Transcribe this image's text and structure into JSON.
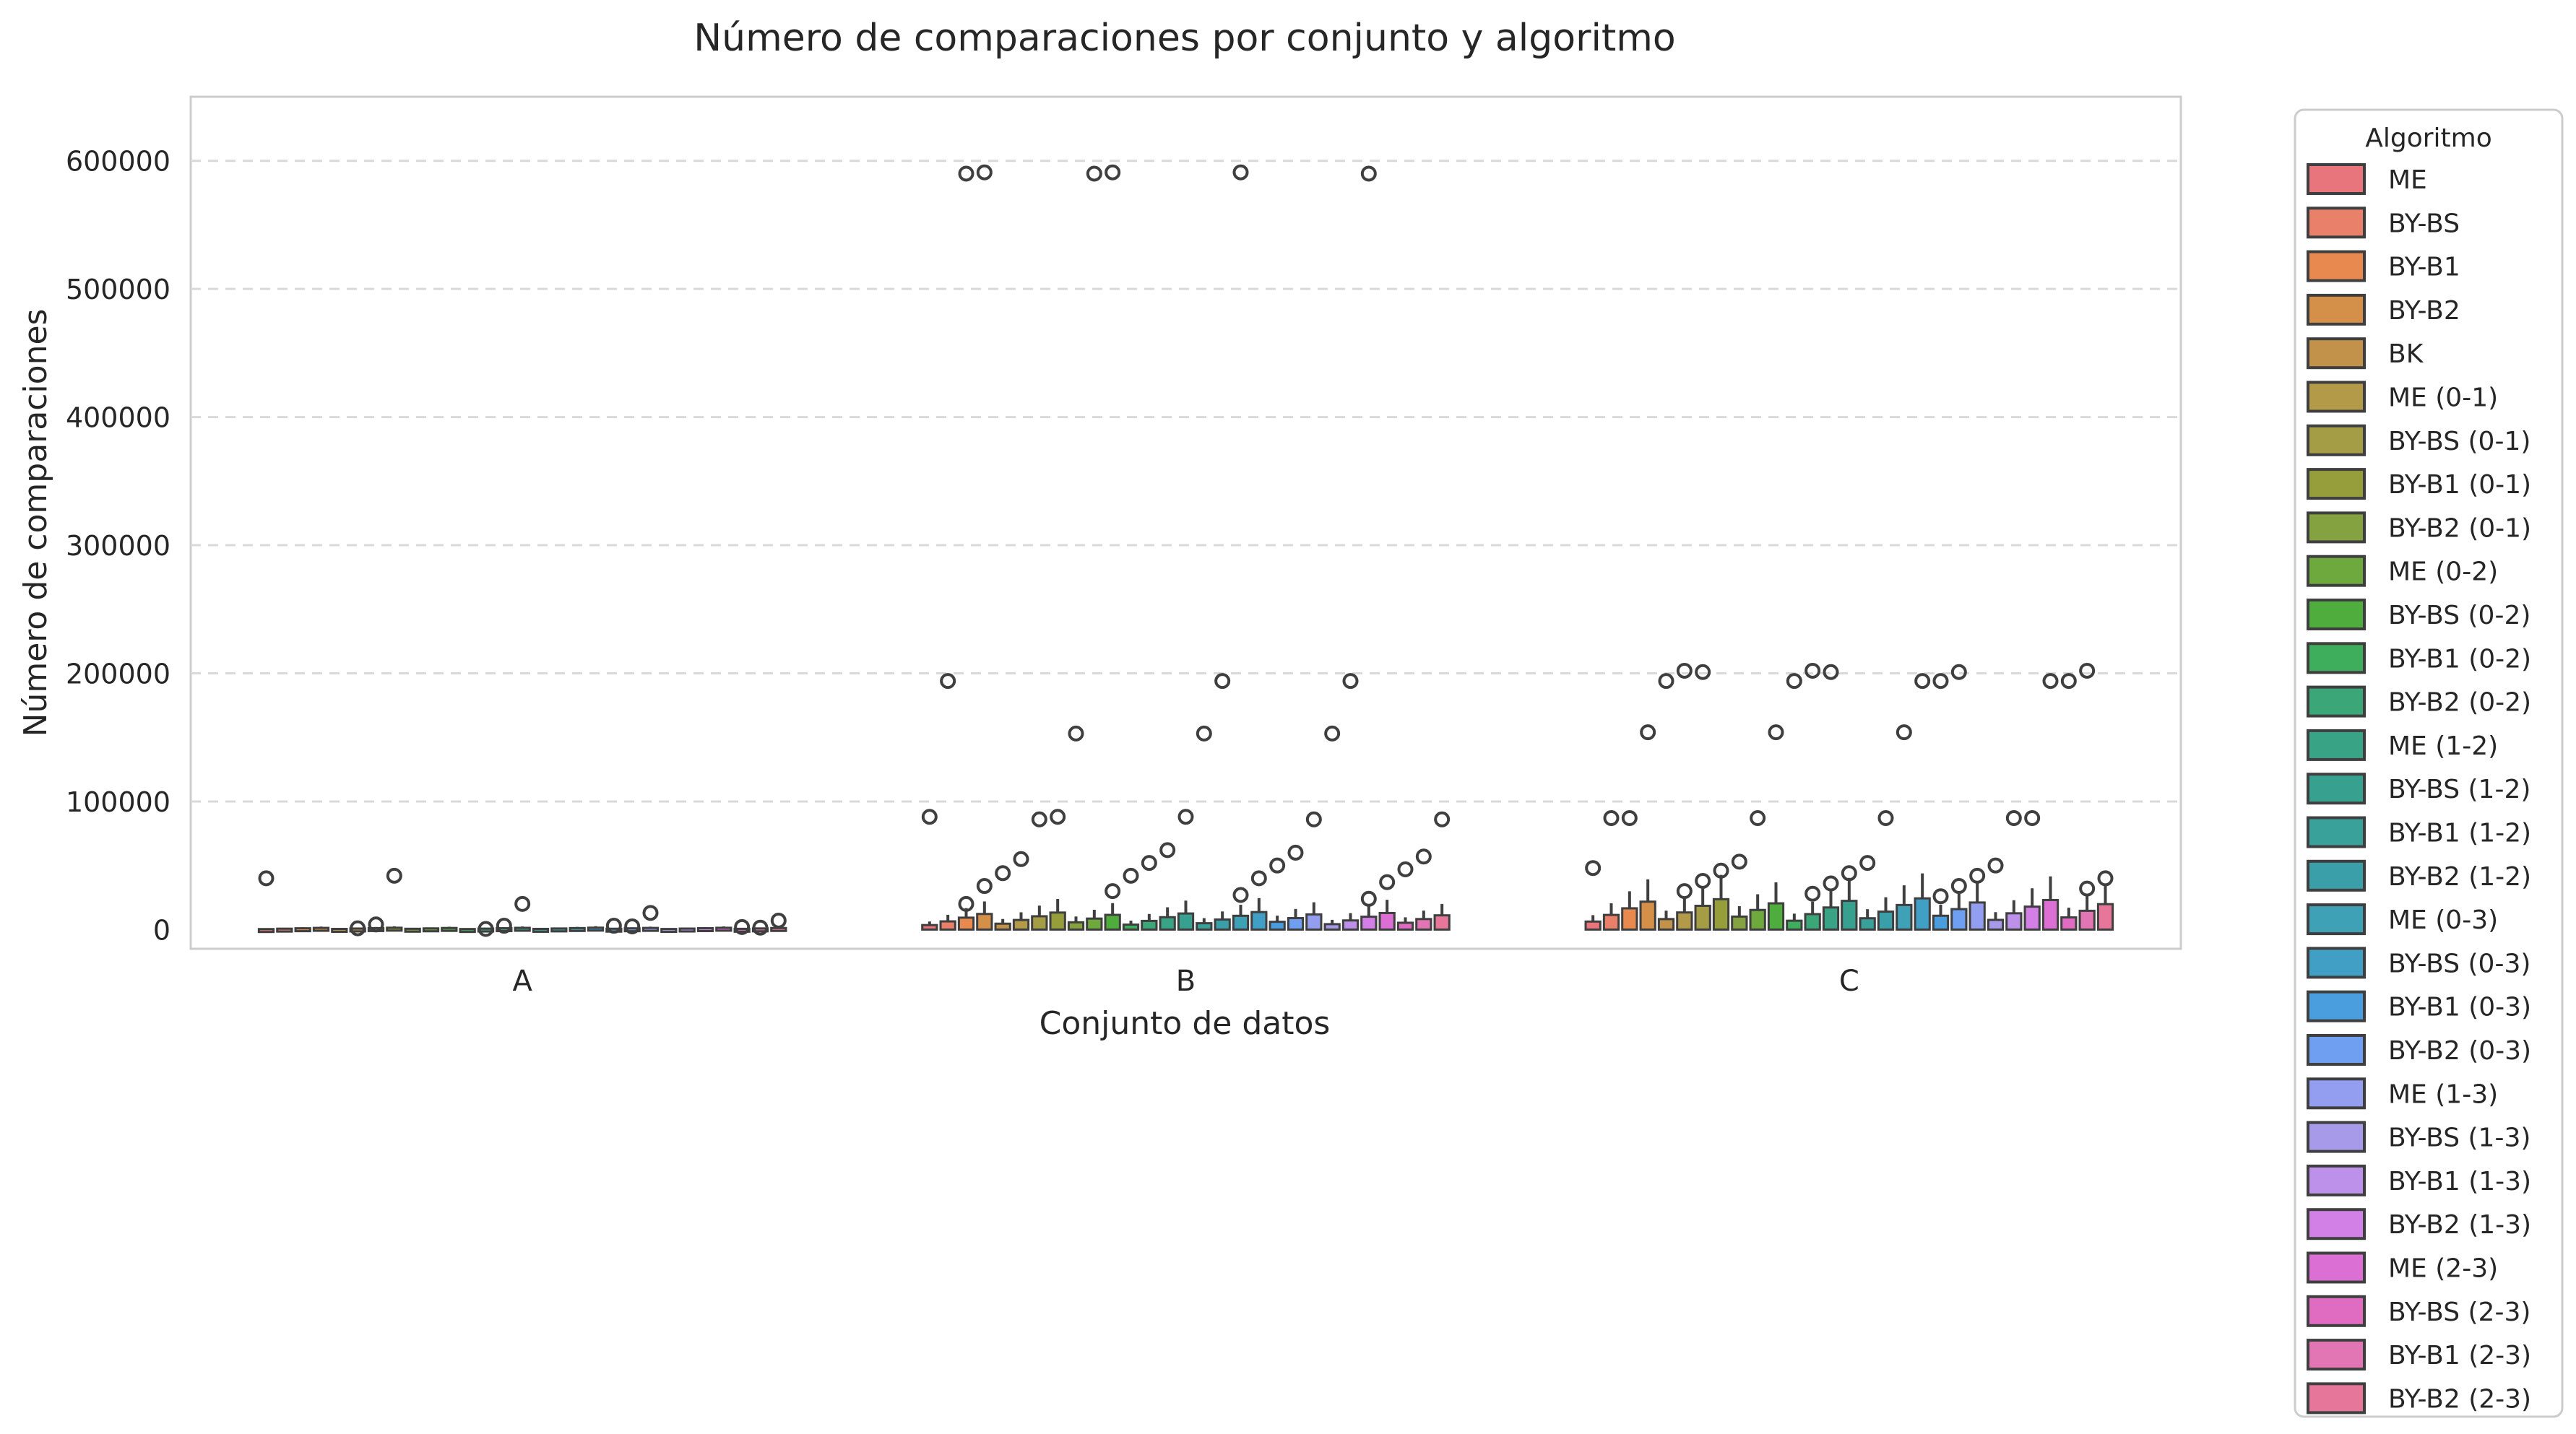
{
  "chart_data": {
    "type": "boxplot",
    "title": "Número de comparaciones por conjunto y algoritmo",
    "xlabel": "Conjunto de datos",
    "ylabel": "Número de comparaciones",
    "categories": [
      "A",
      "B",
      "C"
    ],
    "ylim": [
      -15000,
      650000
    ],
    "yticks": [
      0,
      100000,
      200000,
      300000,
      400000,
      500000,
      600000
    ],
    "grid": "horizontal-dashed",
    "legend": {
      "title": "Algoritmo",
      "placement": "outside-right",
      "entries": [
        "ME",
        "BY-BS",
        "BY-B1",
        "BY-B2",
        "BK",
        "ME (0-1)",
        "BY-BS (0-1)",
        "BY-B1 (0-1)",
        "BY-B2 (0-1)",
        "ME (0-2)",
        "BY-BS (0-2)",
        "BY-B1 (0-2)",
        "BY-B2 (0-2)",
        "ME (1-2)",
        "BY-BS (1-2)",
        "BY-B1 (1-2)",
        "BY-B2 (1-2)",
        "ME (0-3)",
        "BY-BS (0-3)",
        "BY-B1 (0-3)",
        "BY-B2 (0-3)",
        "ME (1-3)",
        "BY-BS (1-3)",
        "BY-B1 (1-3)",
        "BY-B2 (1-3)",
        "ME (2-3)",
        "BY-BS (2-3)",
        "BY-B1 (2-3)",
        "BY-B2 (2-3)"
      ],
      "colors": [
        "#e8747c",
        "#e9806a",
        "#e88a4f",
        "#d48f48",
        "#c2924a",
        "#b29a48",
        "#a59d45",
        "#959e3b",
        "#84a340",
        "#6da93c",
        "#4fad3d",
        "#3fae5c",
        "#3ba778",
        "#39a386",
        "#38a08f",
        "#39a199",
        "#3a9fa8",
        "#3ea1b6",
        "#419fc5",
        "#4a9ede",
        "#6f9ff0",
        "#949ef0",
        "#a79ae9",
        "#bd90ea",
        "#d27fe6",
        "#dc6fd3",
        "#e06cc2",
        "#e276b4",
        "#e6779b"
      ]
    },
    "series": [
      {
        "category": "A",
        "box_max": 1500,
        "outliers": [
          40000,
          42000,
          20000,
          13000,
          7000,
          4000,
          3000,
          2500,
          1500,
          1000,
          500,
          3000,
          2000
        ]
      },
      {
        "category": "B",
        "box_max": 14000,
        "outliers": [
          591000,
          591000,
          591000,
          590000,
          590000,
          590000,
          194000,
          194000,
          194000,
          153000,
          153000,
          153000,
          88000,
          88000,
          88000,
          86000,
          86000,
          86000,
          62000,
          60000,
          57000,
          55000,
          52000,
          50000,
          47000,
          44000,
          42000,
          40000,
          37000,
          34000,
          30000,
          27000,
          24000,
          20000
        ]
      },
      {
        "category": "C",
        "box_max": 25000,
        "outliers": [
          201000,
          201000,
          201000,
          202000,
          202000,
          202000,
          194000,
          194000,
          194000,
          194000,
          194000,
          194000,
          154000,
          154000,
          154000,
          87000,
          87000,
          87000,
          87000,
          87000,
          87000,
          53000,
          52000,
          50000,
          48000,
          46000,
          44000,
          42000,
          40000,
          38000,
          36000,
          34000,
          32000,
          30000,
          28000,
          26000
        ]
      }
    ]
  }
}
